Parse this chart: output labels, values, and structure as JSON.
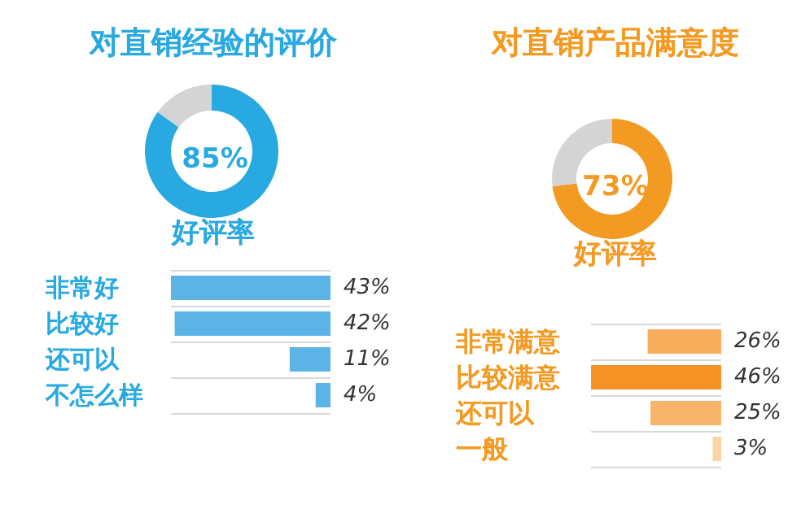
{
  "chart_data": [
    {
      "type": "donut",
      "title": "对直销经验的评价",
      "categories": [
        null,
        null
      ],
      "values": [
        85,
        15
      ],
      "colors": [
        "#29a9e1",
        "#d4d4d4"
      ],
      "value_labels": [
        "85%",
        null
      ],
      "annotations": [
        "好评率"
      ]
    },
    {
      "type": "bar",
      "orientation": "horizontal",
      "categories": [
        "非常好",
        "比较好",
        "还可以",
        "不怎么样"
      ],
      "values": [
        43,
        42,
        11,
        4
      ],
      "colors": [
        "#5cb4e6",
        "#5cb4e6",
        "#5cb4e6",
        "#5cb4e6"
      ],
      "value_labels": [
        "43%",
        "42%",
        "11%",
        "4%"
      ]
    },
    {
      "type": "donut",
      "title": "对直销产品满意度",
      "categories": [
        null,
        null
      ],
      "values": [
        73,
        27
      ],
      "colors": [
        "#f39a22",
        "#d4d4d4"
      ],
      "value_labels": [
        "73%",
        null
      ],
      "annotations": [
        "好评率"
      ]
    },
    {
      "type": "bar",
      "orientation": "horizontal",
      "categories": [
        "非常满意",
        "比较满意",
        "还可以",
        "一般"
      ],
      "values": [
        26,
        46,
        25,
        3
      ],
      "colors": [
        "#f9ae5e",
        "#f39325",
        "#f9b46c",
        "#fcd3a3"
      ],
      "value_labels": [
        "26%",
        "46%",
        "25%",
        "3%"
      ]
    }
  ]
}
